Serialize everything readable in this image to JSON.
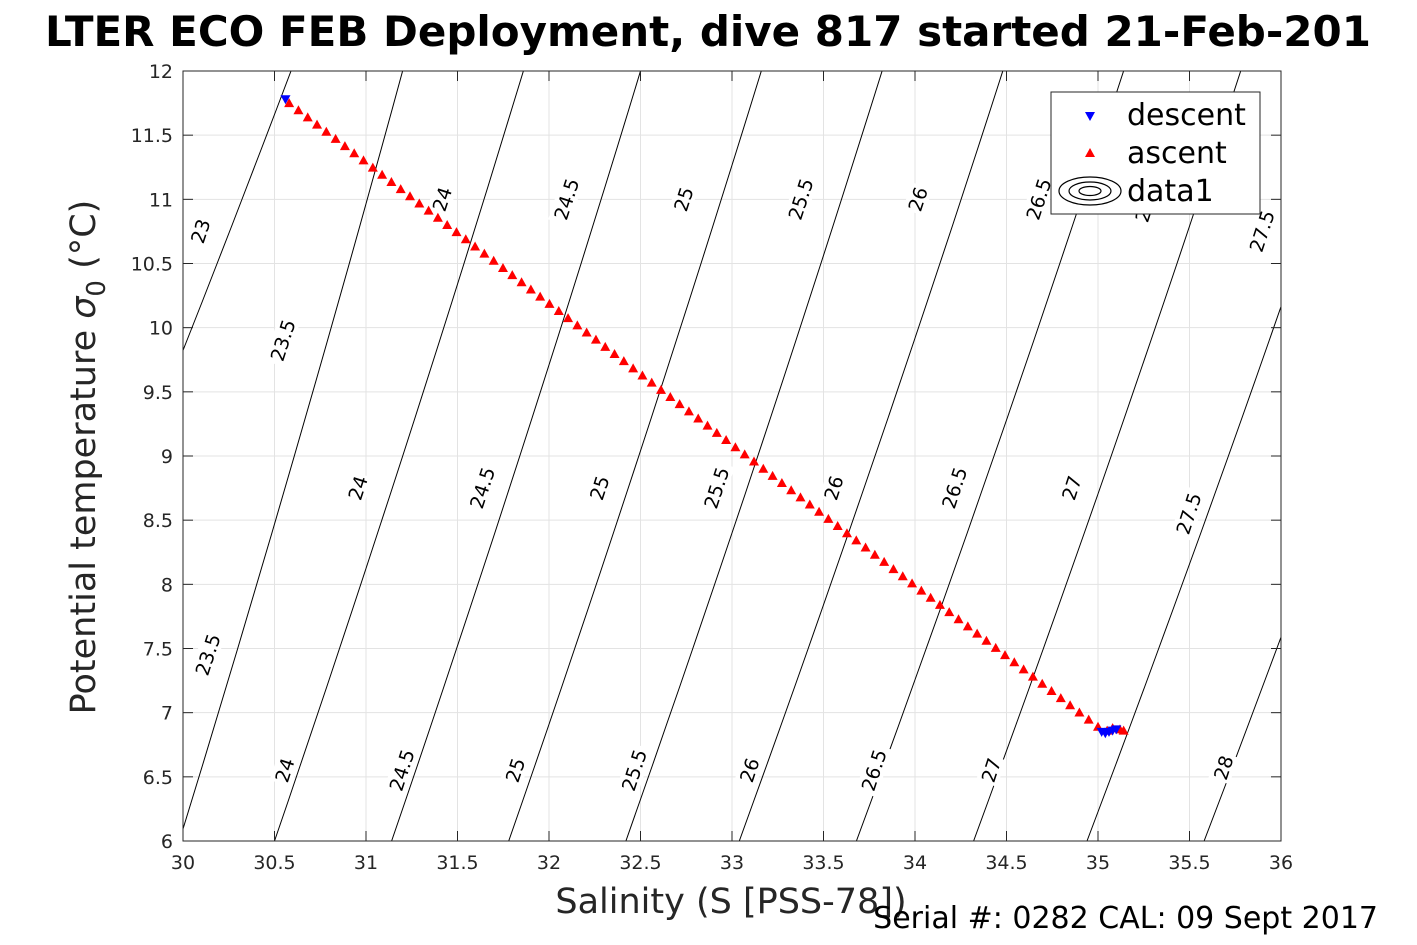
{
  "title": "LTER ECO FEB Deployment, dive 817 started 21-Feb-201",
  "caption": "Serial #: 0282  CAL: 09 Sept 2017",
  "chart_data": {
    "type": "scatter",
    "xlabel": "Salinity (S [PSS-78])",
    "ylabel_prefix": "Potential temperature ",
    "ylabel_symbol": "σ",
    "ylabel_subscript": "0",
    "ylabel_suffix": " (°C)",
    "xlim": [
      30,
      36
    ],
    "ylim": [
      6,
      12
    ],
    "grid": true,
    "legend_position": "top-right",
    "x_ticks": [
      30,
      30.5,
      31,
      31.5,
      32,
      32.5,
      33,
      33.5,
      34,
      34.5,
      35,
      35.5,
      36
    ],
    "y_ticks": [
      6,
      6.5,
      7,
      7.5,
      8,
      8.5,
      9,
      9.5,
      10,
      10.5,
      11,
      11.5,
      12
    ],
    "x_tick_labels": [
      "30",
      "30.5",
      "31",
      "31.5",
      "32",
      "32.5",
      "33",
      "33.5",
      "34",
      "34.5",
      "35",
      "35.5",
      "36"
    ],
    "y_tick_labels": [
      "6",
      "6.5",
      "7",
      "7.5",
      "8",
      "8.5",
      "9",
      "9.5",
      "10",
      "10.5",
      "11",
      "11.5",
      "12"
    ],
    "series": [
      {
        "name": "descent",
        "color": "#0000ff",
        "marker": "triangle-down",
        "x": [
          30.56,
          35.02,
          35.04,
          35.06,
          35.08,
          35.1
        ],
        "y": [
          11.78,
          6.85,
          6.84,
          6.85,
          6.86,
          6.87
        ]
      },
      {
        "name": "ascent",
        "color": "#ff0000",
        "marker": "triangle-up",
        "x_start": 30.58,
        "y_start": 11.75,
        "x_end": 35.0,
        "y_end": 6.89,
        "count": 88,
        "extra_x": [
          35.05,
          35.08,
          35.12,
          35.14
        ],
        "extra_y": [
          6.86,
          6.88,
          6.87,
          6.86
        ]
      },
      {
        "name": "data1",
        "marker": "contour"
      }
    ],
    "contour_lines": [
      {
        "sigma": 23,
        "x_at_6": 28.9,
        "x_at_12": 30.59
      },
      {
        "sigma": 23.5,
        "x_at_6": 29.98,
        "x_at_12": 31.2
      },
      {
        "sigma": 24,
        "x_at_6": 30.5,
        "x_at_12": 31.86
      },
      {
        "sigma": 24.5,
        "x_at_6": 31.14,
        "x_at_12": 32.5
      },
      {
        "sigma": 25,
        "x_at_6": 31.78,
        "x_at_12": 33.16
      },
      {
        "sigma": 25.5,
        "x_at_6": 32.42,
        "x_at_12": 33.82
      },
      {
        "sigma": 26,
        "x_at_6": 33.04,
        "x_at_12": 34.48
      },
      {
        "sigma": 26.5,
        "x_at_6": 33.68,
        "x_at_12": 35.14
      },
      {
        "sigma": 27,
        "x_at_6": 34.32,
        "x_at_12": 35.78
      },
      {
        "sigma": 27.5,
        "x_at_6": 34.94,
        "x_at_12": 36.44
      },
      {
        "sigma": 28,
        "x_at_6": 35.58,
        "x_at_12": 37.1
      }
    ],
    "contour_labels": [
      {
        "text": "23",
        "x": 30.1,
        "y": 10.75
      },
      {
        "text": "23.5",
        "x": 30.55,
        "y": 9.9
      },
      {
        "text": "23.5",
        "x": 30.14,
        "y": 7.45
      },
      {
        "text": "24",
        "x": 31.42,
        "y": 11.0
      },
      {
        "text": "24",
        "x": 30.96,
        "y": 8.75
      },
      {
        "text": "24",
        "x": 30.56,
        "y": 6.55
      },
      {
        "text": "24.5",
        "x": 32.1,
        "y": 11.0
      },
      {
        "text": "24.5",
        "x": 31.64,
        "y": 8.75
      },
      {
        "text": "24.5",
        "x": 31.2,
        "y": 6.55
      },
      {
        "text": "25",
        "x": 32.74,
        "y": 11.0
      },
      {
        "text": "25",
        "x": 32.28,
        "y": 8.75
      },
      {
        "text": "25",
        "x": 31.82,
        "y": 6.55
      },
      {
        "text": "25.5",
        "x": 33.38,
        "y": 11.0
      },
      {
        "text": "25.5",
        "x": 32.92,
        "y": 8.75
      },
      {
        "text": "25.5",
        "x": 32.47,
        "y": 6.55
      },
      {
        "text": "26",
        "x": 34.02,
        "y": 11.0
      },
      {
        "text": "26",
        "x": 33.56,
        "y": 8.75
      },
      {
        "text": "26",
        "x": 33.1,
        "y": 6.55
      },
      {
        "text": "26.5",
        "x": 34.68,
        "y": 11.0
      },
      {
        "text": "26.5",
        "x": 34.22,
        "y": 8.75
      },
      {
        "text": "26.5",
        "x": 33.78,
        "y": 6.55
      },
      {
        "text": "27",
        "x": 34.86,
        "y": 8.75
      },
      {
        "text": "27",
        "x": 34.42,
        "y": 6.55
      },
      {
        "text": "27.5",
        "x": 35.5,
        "y": 8.55
      },
      {
        "text": "27.5",
        "x": 35.9,
        "y": 10.75
      },
      {
        "text": "28",
        "x": 35.69,
        "y": 6.57
      },
      {
        "text": "2",
        "x": 35.25,
        "y": 10.87
      }
    ]
  }
}
